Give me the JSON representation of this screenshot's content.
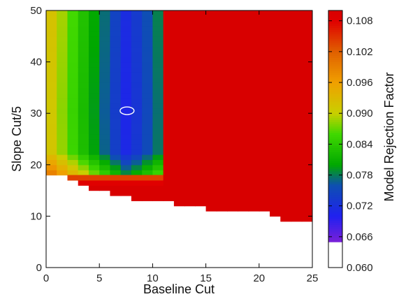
{
  "chart_data": {
    "type": "heatmap",
    "title": "",
    "xlabel": "Baseline Cut",
    "ylabel": "Slope Cut/5",
    "colorbar_label": "Model Rejection Factor",
    "xlim": [
      0,
      25
    ],
    "ylim": [
      0,
      50
    ],
    "x_ticks": [
      0,
      5,
      10,
      15,
      20,
      25
    ],
    "y_ticks": [
      0,
      10,
      20,
      30,
      40,
      50
    ],
    "colorbar_range": [
      0.06,
      0.11
    ],
    "colorbar_ticks": [
      "0.060",
      "0.066",
      "0.072",
      "0.078",
      "0.084",
      "0.090",
      "0.096",
      "0.102",
      "0.108"
    ],
    "colormap_stops": [
      {
        "value": 0.06,
        "color": "#ffffff"
      },
      {
        "value": 0.0649,
        "color": "#ffffff"
      },
      {
        "value": 0.065,
        "color": "#7a20d8"
      },
      {
        "value": 0.07,
        "color": "#2020f0"
      },
      {
        "value": 0.076,
        "color": "#0e4fb2"
      },
      {
        "value": 0.08,
        "color": "#00a800"
      },
      {
        "value": 0.086,
        "color": "#40d800"
      },
      {
        "value": 0.09,
        "color": "#c8d000"
      },
      {
        "value": 0.096,
        "color": "#f0a000"
      },
      {
        "value": 0.102,
        "color": "#e06000"
      },
      {
        "value": 0.108,
        "color": "#e00000"
      },
      {
        "value": 0.11,
        "color": "#d80000"
      }
    ],
    "grid": false,
    "optimum_marker": {
      "shape": "ellipse",
      "x": 7.6,
      "y": 30.5
    },
    "model": {
      "x_cells": 25,
      "y_cells": 32,
      "y_min": 18,
      "y_max": 50,
      "min_value": 0.0705,
      "optimum": {
        "x": 7.6,
        "y": 30.5
      },
      "left_rise_per_unit": 0.0029,
      "right_rise_per_unit": 0.0024,
      "up_rise_per_unit": 4e-05,
      "floor_y": 22.5,
      "floor_rise": 0.0018,
      "saturate_value": 0.11,
      "cutoff_boundary": [
        {
          "x": 0,
          "y": 18
        },
        {
          "x": 2,
          "y": 17
        },
        {
          "x": 3,
          "y": 16
        },
        {
          "x": 4,
          "y": 15
        },
        {
          "x": 6,
          "y": 14
        },
        {
          "x": 8,
          "y": 13
        },
        {
          "x": 10,
          "y": 13
        },
        {
          "x": 12,
          "y": 12
        },
        {
          "x": 15,
          "y": 11
        },
        {
          "x": 18,
          "y": 11
        },
        {
          "x": 21,
          "y": 10
        },
        {
          "x": 22,
          "y": 9
        },
        {
          "x": 25,
          "y": 9
        }
      ],
      "saturated_region": [
        {
          "x_from": 20,
          "y_from": 33
        },
        {
          "x_from": 19,
          "y_from": 28
        },
        {
          "x_from": 18,
          "y_from": 22
        },
        {
          "x_from": 16,
          "y_from": 20
        },
        {
          "x_from": 11,
          "y_from": 18
        }
      ]
    }
  }
}
